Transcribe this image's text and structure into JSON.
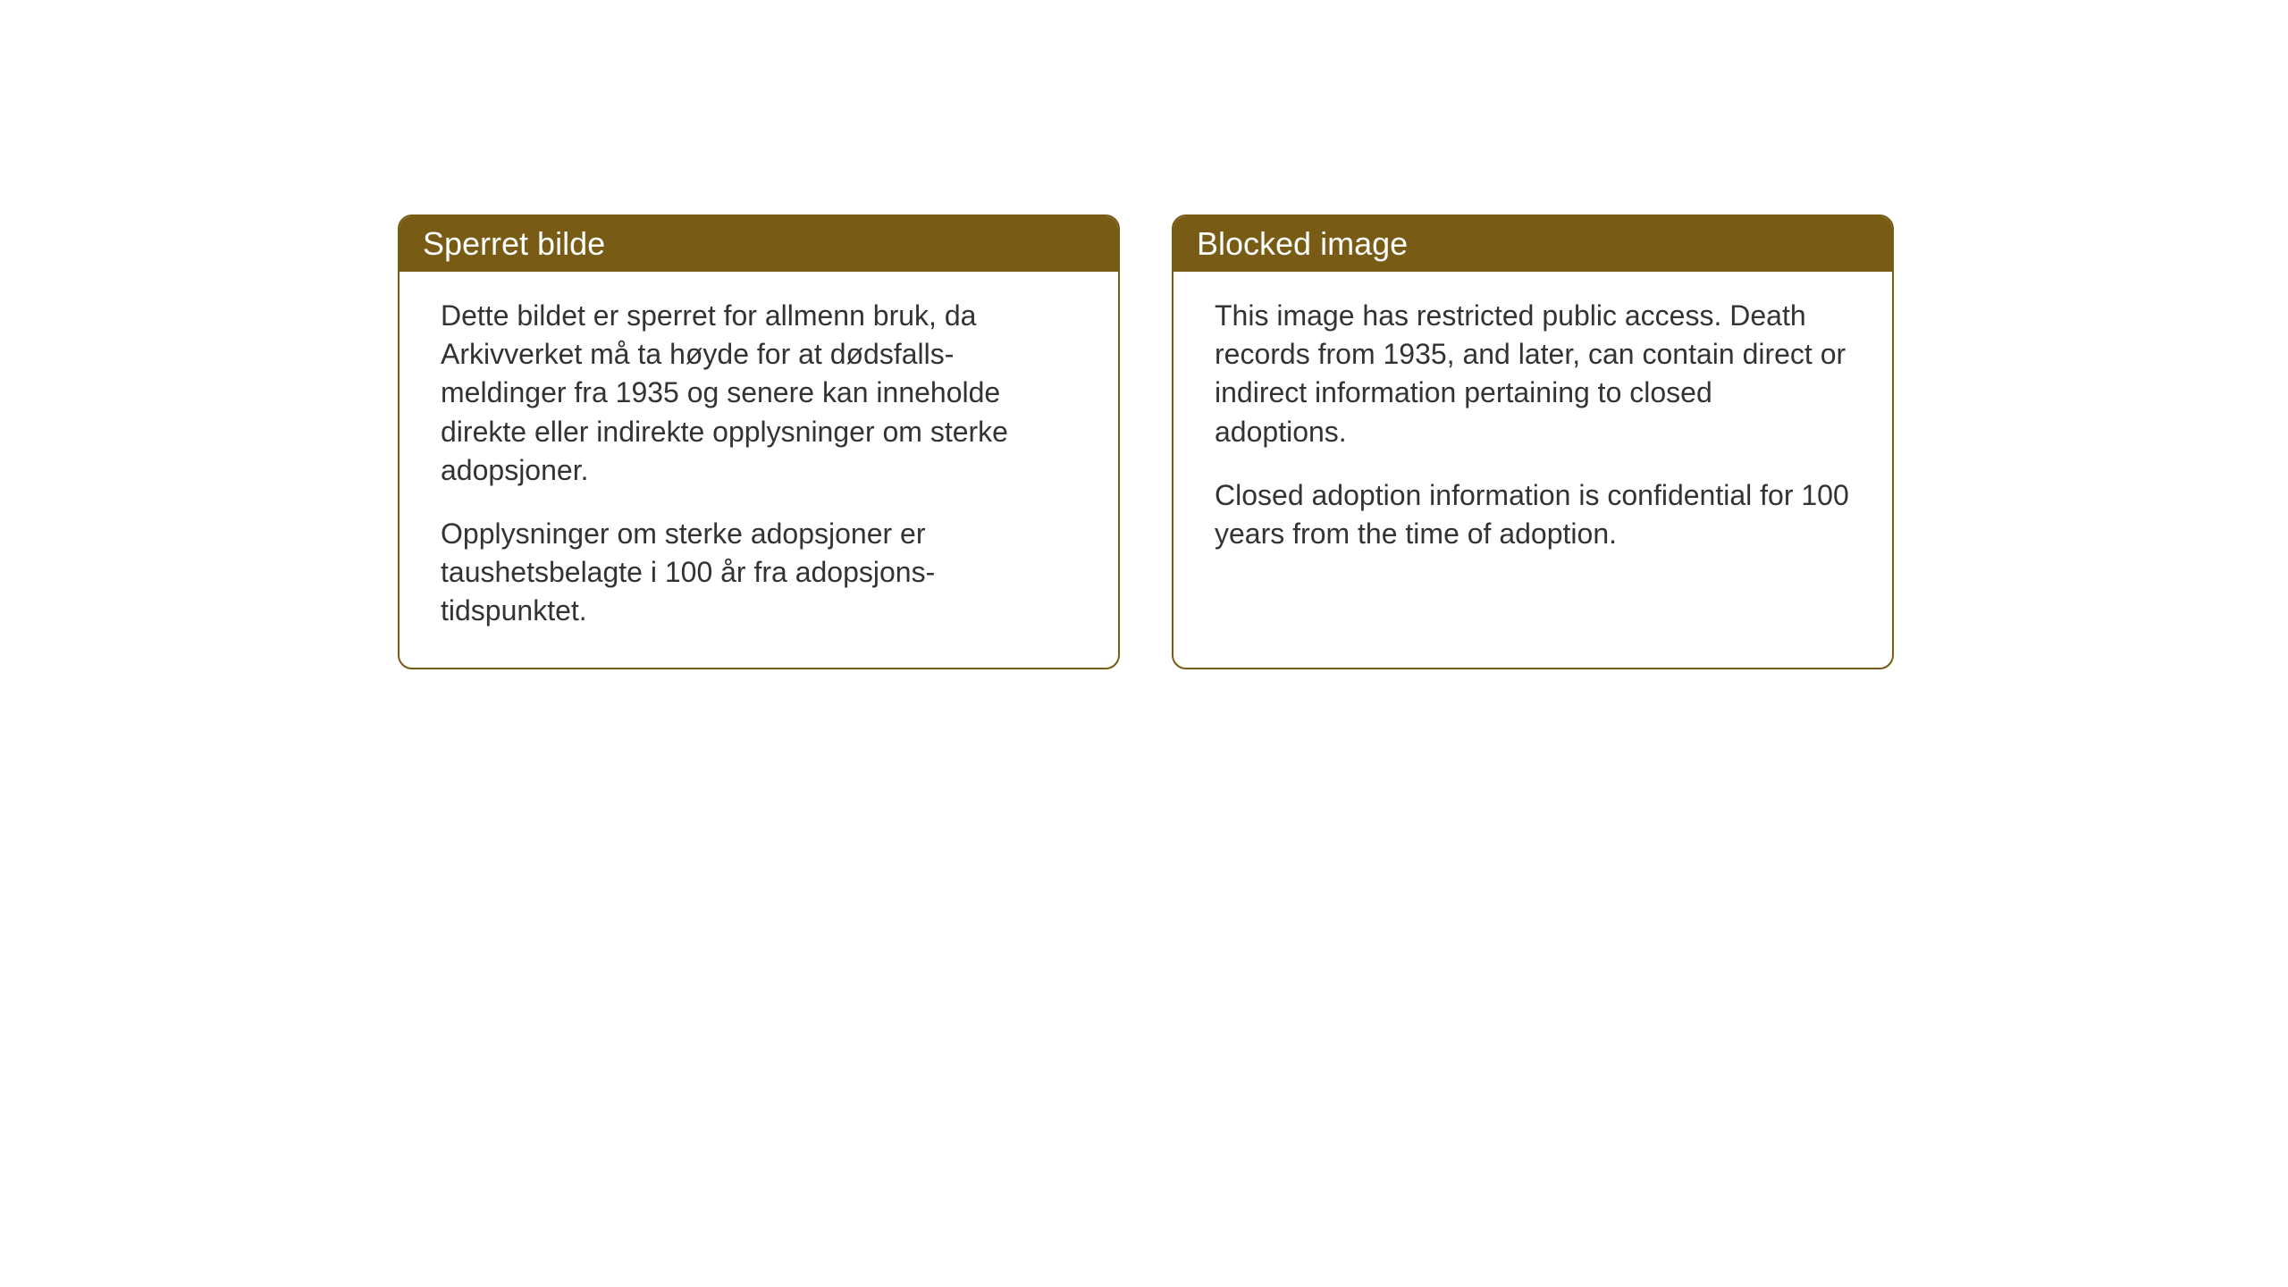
{
  "cards": {
    "norwegian": {
      "title": "Sperret bilde",
      "paragraph1": "Dette bildet er sperret for allmenn bruk, da Arkivverket må ta høyde for at dødsfalls-meldinger fra 1935 og senere kan inneholde direkte eller indirekte opplysninger om sterke adopsjoner.",
      "paragraph2": "Opplysninger om sterke adopsjoner er taushetsbelagte i 100 år fra adopsjons-tidspunktet."
    },
    "english": {
      "title": "Blocked image",
      "paragraph1": "This image has restricted public access. Death records from 1935, and later, can contain direct or indirect information pertaining to closed adoptions.",
      "paragraph2": "Closed adoption information is confidential for 100 years from the time of adoption."
    }
  },
  "styling": {
    "header_bg_color": "#785b14",
    "header_text_color": "#ffffff",
    "border_color": "#785b14",
    "body_text_color": "#333333",
    "background_color": "#ffffff",
    "border_radius": 16,
    "header_font_size": 36,
    "body_font_size": 32
  }
}
